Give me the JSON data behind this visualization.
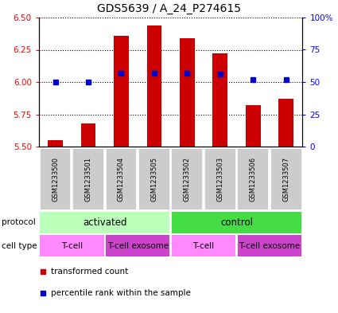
{
  "title": "GDS5639 / A_24_P274615",
  "samples": [
    "GSM1233500",
    "GSM1233501",
    "GSM1233504",
    "GSM1233505",
    "GSM1233502",
    "GSM1233503",
    "GSM1233506",
    "GSM1233507"
  ],
  "transformed_counts": [
    5.55,
    5.68,
    6.36,
    6.44,
    6.34,
    6.22,
    5.82,
    5.87
  ],
  "percentile_ranks": [
    50,
    50,
    57,
    57,
    57,
    56,
    52,
    52
  ],
  "ylim": [
    5.5,
    6.5
  ],
  "yticks_left": [
    5.5,
    5.75,
    6.0,
    6.25,
    6.5
  ],
  "yticks_right": [
    0,
    25,
    50,
    75,
    100
  ],
  "yticks_right_labels": [
    "0",
    "25",
    "50",
    "75",
    "100%"
  ],
  "bar_color": "#cc0000",
  "dot_color": "#0000cc",
  "protocol_groups": [
    {
      "label": "activated",
      "start": 0,
      "end": 4,
      "color": "#bbffbb"
    },
    {
      "label": "control",
      "start": 4,
      "end": 8,
      "color": "#44dd44"
    }
  ],
  "cell_type_groups": [
    {
      "label": "T-cell",
      "start": 0,
      "end": 2,
      "color": "#ff88ff"
    },
    {
      "label": "T-cell exosome",
      "start": 2,
      "end": 4,
      "color": "#cc44cc"
    },
    {
      "label": "T-cell",
      "start": 4,
      "end": 6,
      "color": "#ff88ff"
    },
    {
      "label": "T-cell exosome",
      "start": 6,
      "end": 8,
      "color": "#cc44cc"
    }
  ],
  "baseline": 5.5,
  "legend_red_label": "transformed count",
  "legend_blue_label": "percentile rank within the sample",
  "sample_box_color": "#cccccc",
  "sample_sep_color": "#ffffff"
}
